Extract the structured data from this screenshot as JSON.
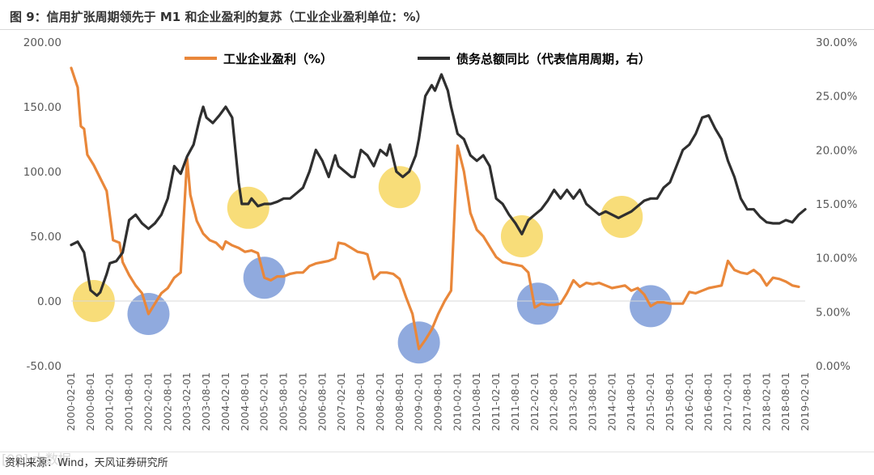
{
  "title": "图 9：信用扩张周期领先于 M1 和企业盈利的复苏（工业企业盈利单位：%）",
  "source": "资料来源：Wind，天风证券研究所",
  "watermark": "[98] 大数据",
  "colors": {
    "profit": "#E9873A",
    "debt": "#2F2F2F",
    "yellow_marker": "#F7D65C",
    "blue_marker": "#7D9BD8"
  },
  "chart_data": {
    "type": "line",
    "title": "",
    "legend_placement": "top",
    "grid": false,
    "y_left": {
      "ylim": [
        -50,
        200
      ],
      "ticks": [
        -50,
        0,
        50,
        100,
        150,
        200
      ],
      "tick_labels": [
        "-50.00",
        "0.00",
        "50.00",
        "100.00",
        "150.00",
        "200.00"
      ]
    },
    "y_right": {
      "ylim": [
        0,
        30
      ],
      "ticks": [
        0,
        5,
        10,
        15,
        20,
        25,
        30
      ],
      "tick_labels": [
        "0.00%",
        "5.00%",
        "10.00%",
        "15.00%",
        "20.00%",
        "25.00%",
        "30.00%"
      ]
    },
    "x_tick_labels": [
      "2000-02-01",
      "2000-08-01",
      "2001-02-01",
      "2001-08-01",
      "2002-02-01",
      "2002-08-01",
      "2003-02-01",
      "2003-08-01",
      "2004-02-01",
      "2004-08-01",
      "2005-02-01",
      "2005-08-01",
      "2006-02-01",
      "2006-08-01",
      "2007-02-01",
      "2007-08-01",
      "2008-02-01",
      "2008-08-01",
      "2009-02-01",
      "2009-08-01",
      "2010-02-01",
      "2010-08-01",
      "2011-02-01",
      "2011-08-01",
      "2012-02-01",
      "2012-08-01",
      "2013-02-01",
      "2013-08-01",
      "2014-02-01",
      "2014-08-01",
      "2015-02-01",
      "2015-08-01",
      "2016-02-01",
      "2016-08-01",
      "2017-02-01",
      "2017-08-01",
      "2018-02-01",
      "2018-08-01",
      "2019-02-01"
    ],
    "series": [
      {
        "name": "工业企业盈利（%）",
        "axis": "left",
        "points": [
          [
            "2000-02",
            180
          ],
          [
            "2000-04",
            165
          ],
          [
            "2000-05",
            135
          ],
          [
            "2000-06",
            133
          ],
          [
            "2000-07",
            113
          ],
          [
            "2000-09",
            105
          ],
          [
            "2000-11",
            95
          ],
          [
            "2001-01",
            85
          ],
          [
            "2001-03",
            47
          ],
          [
            "2001-05",
            45
          ],
          [
            "2001-06",
            30
          ],
          [
            "2001-08",
            20
          ],
          [
            "2001-10",
            12
          ],
          [
            "2001-12",
            6
          ],
          [
            "2002-02",
            -10
          ],
          [
            "2002-04",
            -2
          ],
          [
            "2002-05",
            2
          ],
          [
            "2002-06",
            6
          ],
          [
            "2002-08",
            10
          ],
          [
            "2002-10",
            18
          ],
          [
            "2002-12",
            22
          ],
          [
            "2003-02",
            110
          ],
          [
            "2003-03",
            82
          ],
          [
            "2003-05",
            62
          ],
          [
            "2003-07",
            52
          ],
          [
            "2003-09",
            47
          ],
          [
            "2003-11",
            45
          ],
          [
            "2004-01",
            40
          ],
          [
            "2004-02",
            46
          ],
          [
            "2004-04",
            43
          ],
          [
            "2004-06",
            41
          ],
          [
            "2004-08",
            38
          ],
          [
            "2004-10",
            39
          ],
          [
            "2004-12",
            37
          ],
          [
            "2005-02",
            18
          ],
          [
            "2005-04",
            16
          ],
          [
            "2005-06",
            19
          ],
          [
            "2005-08",
            19
          ],
          [
            "2005-10",
            21
          ],
          [
            "2005-12",
            22
          ],
          [
            "2006-02",
            22
          ],
          [
            "2006-04",
            27
          ],
          [
            "2006-06",
            29
          ],
          [
            "2006-08",
            30
          ],
          [
            "2006-10",
            31
          ],
          [
            "2006-12",
            33
          ],
          [
            "2007-01",
            45
          ],
          [
            "2007-03",
            44
          ],
          [
            "2007-05",
            41
          ],
          [
            "2007-07",
            38
          ],
          [
            "2007-09",
            37
          ],
          [
            "2007-10",
            36
          ],
          [
            "2007-12",
            17
          ],
          [
            "2008-02",
            22
          ],
          [
            "2008-04",
            22
          ],
          [
            "2008-06",
            21
          ],
          [
            "2008-08",
            17
          ],
          [
            "2008-10",
            3
          ],
          [
            "2008-12",
            -10
          ],
          [
            "2009-02",
            -37
          ],
          [
            "2009-04",
            -30
          ],
          [
            "2009-06",
            -22
          ],
          [
            "2009-08",
            -10
          ],
          [
            "2009-10",
            0
          ],
          [
            "2009-12",
            8
          ],
          [
            "2010-02",
            120
          ],
          [
            "2010-04",
            100
          ],
          [
            "2010-06",
            68
          ],
          [
            "2010-08",
            55
          ],
          [
            "2010-10",
            50
          ],
          [
            "2010-12",
            42
          ],
          [
            "2011-02",
            34
          ],
          [
            "2011-04",
            30
          ],
          [
            "2011-06",
            29
          ],
          [
            "2011-08",
            28
          ],
          [
            "2011-10",
            27
          ],
          [
            "2011-12",
            22
          ],
          [
            "2012-02",
            -5
          ],
          [
            "2012-04",
            -2
          ],
          [
            "2012-06",
            -3
          ],
          [
            "2012-08",
            -3
          ],
          [
            "2012-10",
            -2
          ],
          [
            "2012-12",
            6
          ],
          [
            "2013-02",
            16
          ],
          [
            "2013-04",
            11
          ],
          [
            "2013-06",
            14
          ],
          [
            "2013-08",
            13
          ],
          [
            "2013-10",
            14
          ],
          [
            "2013-12",
            12
          ],
          [
            "2014-02",
            10
          ],
          [
            "2014-04",
            11
          ],
          [
            "2014-06",
            12
          ],
          [
            "2014-08",
            8
          ],
          [
            "2014-10",
            10
          ],
          [
            "2014-12",
            5
          ],
          [
            "2015-02",
            -4
          ],
          [
            "2015-04",
            -1
          ],
          [
            "2015-06",
            -1
          ],
          [
            "2015-08",
            -2
          ],
          [
            "2015-10",
            -2
          ],
          [
            "2015-12",
            -2
          ],
          [
            "2016-02",
            7
          ],
          [
            "2016-04",
            6
          ],
          [
            "2016-06",
            8
          ],
          [
            "2016-08",
            10
          ],
          [
            "2016-10",
            11
          ],
          [
            "2016-12",
            12
          ],
          [
            "2017-02",
            31
          ],
          [
            "2017-04",
            24
          ],
          [
            "2017-06",
            22
          ],
          [
            "2017-08",
            21
          ],
          [
            "2017-10",
            24
          ],
          [
            "2017-12",
            20
          ],
          [
            "2018-02",
            12
          ],
          [
            "2018-04",
            18
          ],
          [
            "2018-06",
            17
          ],
          [
            "2018-08",
            15
          ],
          [
            "2018-10",
            12
          ],
          [
            "2018-12",
            11
          ]
        ]
      },
      {
        "name": "债务总额同比（代表信用周期，右）",
        "axis": "right",
        "points": [
          [
            "2000-02",
            11.2
          ],
          [
            "2000-04",
            11.5
          ],
          [
            "2000-06",
            10.5
          ],
          [
            "2000-08",
            7.0
          ],
          [
            "2000-10",
            6.5
          ],
          [
            "2000-11",
            6.8
          ],
          [
            "2001-01",
            8.5
          ],
          [
            "2001-02",
            9.5
          ],
          [
            "2001-04",
            9.7
          ],
          [
            "2001-06",
            10.5
          ],
          [
            "2001-08",
            13.5
          ],
          [
            "2001-10",
            14.0
          ],
          [
            "2001-12",
            13.2
          ],
          [
            "2002-02",
            12.7
          ],
          [
            "2002-04",
            13.2
          ],
          [
            "2002-06",
            14.0
          ],
          [
            "2002-08",
            15.5
          ],
          [
            "2002-10",
            18.5
          ],
          [
            "2002-12",
            17.8
          ],
          [
            "2003-02",
            19.4
          ],
          [
            "2003-04",
            20.5
          ],
          [
            "2003-06",
            23.0
          ],
          [
            "2003-07",
            24.0
          ],
          [
            "2003-08",
            23.0
          ],
          [
            "2003-10",
            22.5
          ],
          [
            "2003-12",
            23.2
          ],
          [
            "2004-02",
            24.0
          ],
          [
            "2004-04",
            23.0
          ],
          [
            "2004-06",
            17.0
          ],
          [
            "2004-07",
            15.0
          ],
          [
            "2004-09",
            15.0
          ],
          [
            "2004-10",
            15.5
          ],
          [
            "2004-12",
            14.8
          ],
          [
            "2005-02",
            15.0
          ],
          [
            "2005-04",
            15.0
          ],
          [
            "2005-06",
            15.2
          ],
          [
            "2005-08",
            15.5
          ],
          [
            "2005-10",
            15.5
          ],
          [
            "2005-12",
            16.0
          ],
          [
            "2006-02",
            16.5
          ],
          [
            "2006-04",
            18.0
          ],
          [
            "2006-06",
            20.0
          ],
          [
            "2006-08",
            19.0
          ],
          [
            "2006-10",
            17.5
          ],
          [
            "2006-12",
            19.5
          ],
          [
            "2007-01",
            18.5
          ],
          [
            "2007-03",
            18.0
          ],
          [
            "2007-05",
            17.5
          ],
          [
            "2007-06",
            17.5
          ],
          [
            "2007-08",
            20.0
          ],
          [
            "2007-10",
            19.5
          ],
          [
            "2007-12",
            18.5
          ],
          [
            "2008-02",
            20.0
          ],
          [
            "2008-04",
            19.5
          ],
          [
            "2008-05",
            20.5
          ],
          [
            "2008-07",
            18.0
          ],
          [
            "2008-09",
            17.5
          ],
          [
            "2008-11",
            18.0
          ],
          [
            "2009-01",
            19.5
          ],
          [
            "2009-02",
            21.0
          ],
          [
            "2009-04",
            25.0
          ],
          [
            "2009-06",
            26.0
          ],
          [
            "2009-07",
            25.5
          ],
          [
            "2009-09",
            27.0
          ],
          [
            "2009-11",
            25.5
          ],
          [
            "2009-12",
            24.0
          ],
          [
            "2010-02",
            21.5
          ],
          [
            "2010-04",
            21.0
          ],
          [
            "2010-06",
            19.5
          ],
          [
            "2010-08",
            19.0
          ],
          [
            "2010-10",
            19.5
          ],
          [
            "2010-12",
            18.5
          ],
          [
            "2011-02",
            15.5
          ],
          [
            "2011-04",
            15.0
          ],
          [
            "2011-06",
            14.0
          ],
          [
            "2011-08",
            13.2
          ],
          [
            "2011-10",
            12.2
          ],
          [
            "2011-12",
            13.5
          ],
          [
            "2012-02",
            14.0
          ],
          [
            "2012-04",
            14.5
          ],
          [
            "2012-06",
            15.3
          ],
          [
            "2012-08",
            16.3
          ],
          [
            "2012-10",
            15.5
          ],
          [
            "2012-12",
            16.3
          ],
          [
            "2013-02",
            15.5
          ],
          [
            "2013-04",
            16.3
          ],
          [
            "2013-06",
            15.0
          ],
          [
            "2013-08",
            14.5
          ],
          [
            "2013-10",
            14.0
          ],
          [
            "2013-12",
            14.3
          ],
          [
            "2014-02",
            14.0
          ],
          [
            "2014-04",
            13.7
          ],
          [
            "2014-06",
            14.0
          ],
          [
            "2014-08",
            14.3
          ],
          [
            "2014-10",
            14.8
          ],
          [
            "2014-12",
            15.3
          ],
          [
            "2015-02",
            15.5
          ],
          [
            "2015-04",
            15.5
          ],
          [
            "2015-06",
            16.5
          ],
          [
            "2015-08",
            17.0
          ],
          [
            "2015-10",
            18.5
          ],
          [
            "2015-12",
            20.0
          ],
          [
            "2016-02",
            20.5
          ],
          [
            "2016-04",
            21.5
          ],
          [
            "2016-06",
            23.0
          ],
          [
            "2016-08",
            23.2
          ],
          [
            "2016-10",
            22.0
          ],
          [
            "2016-12",
            21.0
          ],
          [
            "2017-02",
            19.0
          ],
          [
            "2017-04",
            17.5
          ],
          [
            "2017-06",
            15.5
          ],
          [
            "2017-08",
            14.5
          ],
          [
            "2017-10",
            14.5
          ],
          [
            "2017-12",
            13.8
          ],
          [
            "2018-02",
            13.3
          ],
          [
            "2018-04",
            13.2
          ],
          [
            "2018-06",
            13.2
          ],
          [
            "2018-08",
            13.5
          ],
          [
            "2018-10",
            13.3
          ],
          [
            "2018-12",
            14.0
          ],
          [
            "2019-02",
            14.5
          ]
        ]
      }
    ],
    "markers": [
      {
        "color": "yellow",
        "date": "2000-09",
        "value": 0
      },
      {
        "color": "blue",
        "date": "2002-02",
        "value": -10
      },
      {
        "color": "yellow",
        "date": "2004-09",
        "value": 72
      },
      {
        "color": "blue",
        "date": "2005-02",
        "value": 18
      },
      {
        "color": "yellow",
        "date": "2008-08",
        "value": 88
      },
      {
        "color": "blue",
        "date": "2009-02",
        "value": -32
      },
      {
        "color": "yellow",
        "date": "2011-10",
        "value": 50
      },
      {
        "color": "blue",
        "date": "2012-03",
        "value": -2
      },
      {
        "color": "yellow",
        "date": "2014-05",
        "value": 65
      },
      {
        "color": "blue",
        "date": "2015-02",
        "value": -4
      }
    ]
  }
}
